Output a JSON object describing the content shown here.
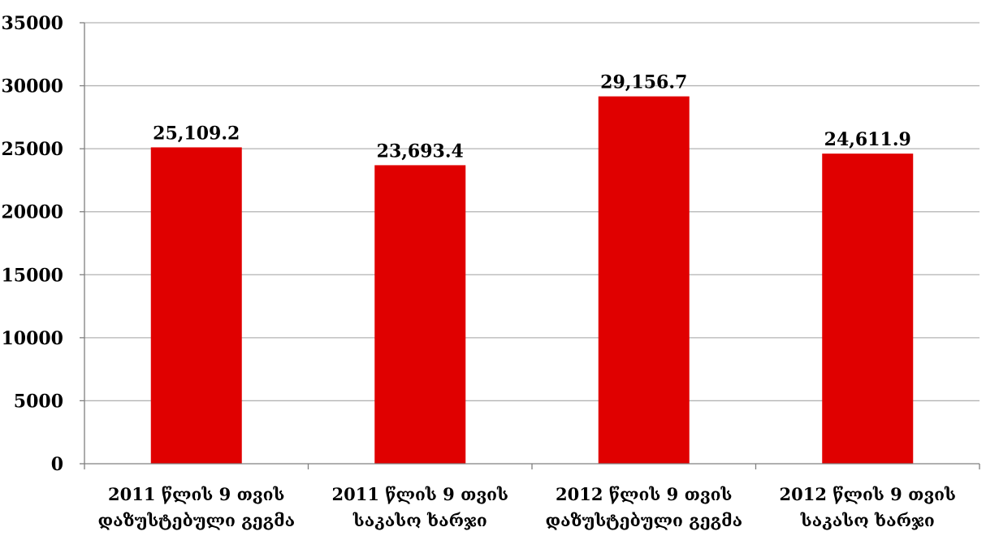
{
  "chart_data": {
    "type": "bar",
    "title": "",
    "xlabel": "",
    "ylabel": "",
    "categories": [
      [
        "2011 წლის 9 თვის",
        "დაზუსტებული გეგმა"
      ],
      [
        "2011 წლის 9 თვის",
        "საკასო ხარჯი"
      ],
      [
        "2012 წლის 9 თვის",
        "დაზუსტებული გეგმა"
      ],
      [
        "2012 წლის 9 თვის",
        "საკასო ხარჯი"
      ]
    ],
    "values": [
      25109.2,
      23693.4,
      29156.7,
      24611.9
    ],
    "data_labels": [
      "25,109.2",
      "23,693.4",
      "29,156.7",
      "24,611.9"
    ],
    "ylim": [
      0,
      35000
    ],
    "yticks": [
      0,
      5000,
      10000,
      15000,
      20000,
      25000,
      30000,
      35000
    ],
    "ytick_labels": [
      "0",
      "5000",
      "10000",
      "15000",
      "20000",
      "25000",
      "30000",
      "35000"
    ],
    "grid": true,
    "legend": "none",
    "colors": {
      "bar": "#e00000",
      "grid": "#b3b3b3",
      "axis": "#808080"
    }
  }
}
